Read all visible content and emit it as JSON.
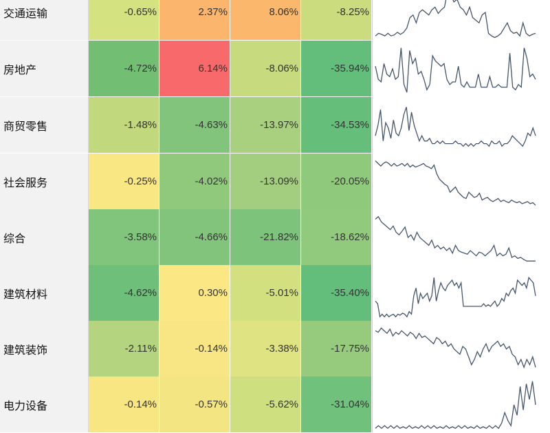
{
  "spark_color": "#44546a",
  "rows": [
    {
      "name": "交通运输",
      "values": [
        "-0.65%",
        "2.37%",
        "8.06%",
        "-8.25%"
      ],
      "colors": [
        "#d4e27f",
        "#fbb56c",
        "#fbb86d",
        "#cbdc7e"
      ],
      "spark": [
        0.05,
        0.1,
        0.08,
        0.05,
        0.1,
        0.05,
        0.07,
        0.12,
        0.08,
        0.12,
        0.2,
        0.4,
        0.45,
        0.3,
        0.5,
        0.55,
        0.5,
        0.45,
        0.55,
        0.6,
        0.48,
        0.55,
        0.6,
        0.9,
        0.85,
        0.7,
        0.75,
        0.6,
        0.55,
        0.45,
        0.6,
        0.4,
        0.35,
        0.3,
        0.45,
        0.5,
        0.1,
        0.05,
        0.02,
        0.05,
        0.1,
        0.2,
        0.3,
        0.15,
        0.1,
        0.12,
        0.05,
        0.3,
        0.1,
        0.05,
        0.08,
        0.1
      ]
    },
    {
      "name": "房地产",
      "values": [
        "-4.72%",
        "6.14%",
        "-8.06%",
        "-35.94%"
      ],
      "colors": [
        "#72bf74",
        "#f8696b",
        "#c7da7e",
        "#63be7b"
      ],
      "spark": [
        0.55,
        0.3,
        0.25,
        0.6,
        0.4,
        0.35,
        0.5,
        0.3,
        0.35,
        0.9,
        0.2,
        0.05,
        0.85,
        0.6,
        0.7,
        0.4,
        0.45,
        0.3,
        0.1,
        0.2,
        0.75,
        0.65,
        0.6,
        0.55,
        0.6,
        0.3,
        0.2,
        0.25,
        0.25,
        0.55,
        0.2,
        0.15,
        0.25,
        0.15,
        0.15,
        0.15,
        0.4,
        0.15,
        0.15,
        0.15,
        0.35,
        0.15,
        0.15,
        0.2,
        0.15,
        0.15,
        0.15,
        0.8,
        0.15,
        0.1,
        0.2,
        0.15,
        0.9,
        0.7,
        0.35,
        0.4,
        0.3
      ]
    },
    {
      "name": "商贸零售",
      "values": [
        "-1.48%",
        "-4.63%",
        "-13.97%",
        "-34.53%"
      ],
      "colors": [
        "#c2d87d",
        "#82c47b",
        "#a8d07f",
        "#65bf7b"
      ],
      "spark": [
        0.3,
        0.5,
        0.8,
        0.2,
        0.55,
        0.45,
        0.25,
        0.6,
        0.35,
        0.3,
        0.45,
        0.7,
        0.85,
        0.4,
        0.75,
        0.5,
        0.35,
        0.2,
        0.3,
        0.2,
        0.2,
        0.25,
        0.15,
        0.15,
        0.2,
        0.15,
        0.2,
        0.15,
        0.15,
        0.15,
        0.15,
        0.2,
        0.15,
        0.15,
        0.1,
        0.15,
        0.1,
        0.15,
        0.1,
        0.15,
        0.15,
        0.2,
        0.15,
        0.15,
        0.1,
        0.2,
        0.15,
        0.15,
        0.2,
        0.1,
        0.15,
        0.15,
        0.2,
        0.3,
        0.25,
        0.2,
        0.15,
        0.1,
        0.2,
        0.35,
        0.3,
        0.45,
        0.3
      ]
    },
    {
      "name": "社会服务",
      "values": [
        "-0.25%",
        "-4.02%",
        "-13.09%",
        "-20.05%"
      ],
      "colors": [
        "#f9e783",
        "#90c97c",
        "#a3ce7f",
        "#8fc97c"
      ],
      "spark": [
        0.9,
        0.85,
        0.8,
        0.85,
        0.88,
        0.85,
        0.8,
        0.85,
        0.8,
        0.82,
        0.85,
        0.8,
        0.85,
        0.78,
        0.82,
        0.78,
        0.8,
        0.82,
        0.85,
        0.8,
        0.78,
        0.75,
        0.82,
        0.65,
        0.55,
        0.5,
        0.45,
        0.42,
        0.3,
        0.35,
        0.4,
        0.3,
        0.25,
        0.2,
        0.18,
        0.3,
        0.25,
        0.2,
        0.22,
        0.28,
        0.15,
        0.18,
        0.2,
        0.15,
        0.12,
        0.15,
        0.18,
        0.12,
        0.15,
        0.12,
        0.1,
        0.15,
        0.12,
        0.1,
        0.12,
        0.08,
        0.1,
        0.12,
        0.08,
        0.1,
        0.05
      ]
    },
    {
      "name": "综合",
      "values": [
        "-3.58%",
        "-4.66%",
        "-21.82%",
        "-18.62%"
      ],
      "colors": [
        "#80c57b",
        "#82c47b",
        "#7dc37b",
        "#92ca7d"
      ],
      "spark": [
        0.85,
        0.9,
        0.8,
        0.75,
        0.7,
        0.65,
        0.72,
        0.6,
        0.55,
        0.62,
        0.7,
        0.5,
        0.55,
        0.45,
        0.6,
        0.5,
        0.45,
        0.4,
        0.35,
        0.45,
        0.3,
        0.35,
        0.28,
        0.32,
        0.25,
        0.3,
        0.2,
        0.35,
        0.25,
        0.22,
        0.2,
        0.18,
        0.25,
        0.2,
        0.15,
        0.22,
        0.2,
        0.15,
        0.2,
        0.25,
        0.35,
        0.15,
        0.2,
        0.15,
        0.18,
        0.3,
        0.12,
        0.15,
        0.1,
        0.12,
        0.08,
        0.05,
        0.05,
        0.05,
        0.05
      ]
    },
    {
      "name": "建筑材料",
      "values": [
        "-4.62%",
        "0.30%",
        "-5.01%",
        "-35.40%"
      ],
      "colors": [
        "#6ebf7a",
        "#fbe784",
        "#d2e07f",
        "#64be7b"
      ],
      "spark": [
        0.35,
        0.3,
        0.05,
        0.1,
        0.05,
        0.1,
        0.05,
        0.08,
        0.1,
        0.05,
        0.1,
        0.08,
        0.12,
        0.1,
        0.05,
        0.15,
        0.1,
        0.45,
        0.6,
        0.3,
        0.5,
        0.4,
        0.45,
        0.5,
        0.35,
        0.45,
        0.8,
        0.35,
        0.55,
        0.7,
        0.6,
        0.55,
        0.65,
        0.7,
        0.75,
        0.65,
        0.7,
        0.6,
        0.7,
        0.25,
        0.25,
        0.25,
        0.25,
        0.25,
        0.25,
        0.25,
        0.25,
        0.25,
        0.3,
        0.25,
        0.28,
        0.25,
        0.3,
        0.35,
        0.25,
        0.3,
        0.4,
        0.35,
        0.5,
        0.45,
        0.55,
        0.6,
        0.5,
        0.75,
        0.7,
        0.65,
        0.7,
        0.6,
        0.8,
        0.75,
        0.7,
        0.45
      ]
    },
    {
      "name": "建筑装饰",
      "values": [
        "-2.11%",
        "-0.14%",
        "-3.38%",
        "-17.75%"
      ],
      "colors": [
        "#b5d47f",
        "#f7e683",
        "#e0e382",
        "#96cb7d"
      ],
      "spark": [
        0.85,
        0.82,
        0.9,
        0.85,
        0.8,
        0.88,
        0.75,
        0.82,
        0.78,
        0.85,
        0.8,
        0.75,
        0.82,
        0.78,
        0.7,
        0.8,
        0.72,
        0.75,
        0.7,
        0.65,
        0.6,
        0.72,
        0.68,
        0.6,
        0.65,
        0.55,
        0.6,
        0.5,
        0.45,
        0.4,
        0.55,
        0.5,
        0.35,
        0.2,
        0.3,
        0.45,
        0.35,
        0.5,
        0.6,
        0.45,
        0.55,
        0.6,
        0.65,
        0.55,
        0.6,
        0.5,
        0.55,
        0.4,
        0.35,
        0.2,
        0.3,
        0.15,
        0.3,
        0.2,
        0.35,
        0.15
      ]
    },
    {
      "name": "电力设备",
      "values": [
        "-0.14%",
        "-0.57%",
        "-5.62%",
        "-31.04%"
      ],
      "colors": [
        "#f8e682",
        "#f3e582",
        "#cedf7f",
        "#6fc17b"
      ],
      "spark": [
        0.05,
        0.1,
        0.05,
        0.1,
        0.05,
        0.1,
        0.05,
        0.1,
        0.05,
        0.08,
        0.05,
        0.1,
        0.05,
        0.08,
        0.05,
        0.1,
        0.05,
        0.1,
        0.05,
        0.1,
        0.05,
        0.08,
        0.05,
        0.1,
        0.05,
        0.08,
        0.05,
        0.1,
        0.05,
        0.1,
        0.05,
        0.08,
        0.05,
        0.1,
        0.05,
        0.08,
        0.05,
        0.1,
        0.05,
        0.1,
        0.05,
        0.15,
        0.35,
        0.2,
        0.1,
        0.5,
        0.3,
        0.85,
        0.4,
        0.9,
        0.6,
        0.95,
        0.5
      ]
    }
  ]
}
